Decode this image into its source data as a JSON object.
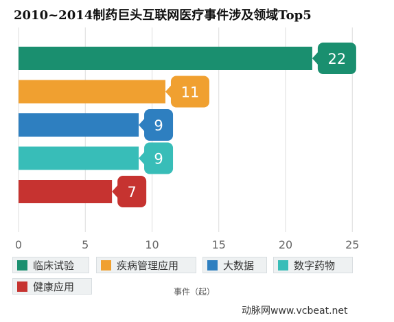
{
  "chart_data": {
    "type": "bar",
    "orientation": "horizontal",
    "title": "2010~2014制药巨头互联网医疗事件涉及领域Top5",
    "categories": [
      "临床试验",
      "疾病管理应用",
      "大数据",
      "数字药物",
      "健康应用"
    ],
    "values": [
      22,
      11,
      9,
      9,
      7
    ],
    "colors": [
      "#1a8f6f",
      "#f0a030",
      "#2e7fc0",
      "#38bdb8",
      "#c63330"
    ],
    "xlabel": "事件（起）",
    "ylabel": "",
    "xlim": [
      0,
      25
    ],
    "ticks": [
      0,
      5,
      10,
      15,
      20,
      25
    ],
    "tick_labels": [
      "0",
      "5",
      "10",
      "15",
      "20",
      "25"
    ],
    "grid": "vertical",
    "legend": "bottom",
    "data_labels": true
  },
  "watermark": "动脉网www.vcbeat.net"
}
